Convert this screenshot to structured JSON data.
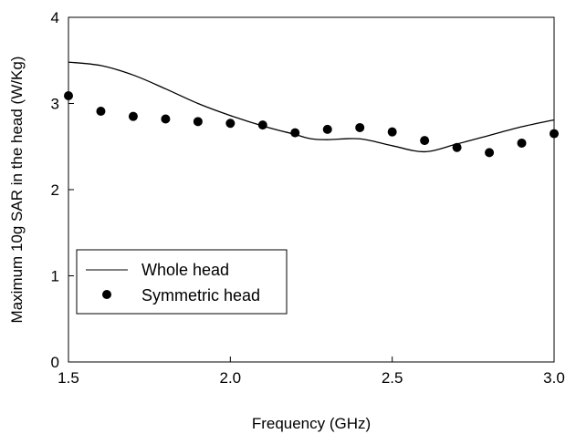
{
  "chart_data": {
    "type": "line",
    "xlabel": "Frequency (GHz)",
    "ylabel": "Maximum 10g SAR in the head (W/Kg)",
    "xlim": [
      1.5,
      3.0
    ],
    "ylim": [
      0,
      4
    ],
    "x_ticks": [
      "1.5",
      "2.0",
      "2.5",
      "3.0"
    ],
    "y_ticks": [
      "0",
      "1",
      "2",
      "3",
      "4"
    ],
    "grid": false,
    "legend_position": "bottom-left",
    "series": [
      {
        "name": "Whole head",
        "style": "line",
        "color": "#000000",
        "x": [
          1.5,
          1.6,
          1.7,
          1.8,
          1.9,
          2.0,
          2.1,
          2.2,
          2.25,
          2.3,
          2.4,
          2.5,
          2.6,
          2.7,
          2.8,
          2.9,
          3.0
        ],
        "y": [
          3.48,
          3.44,
          3.33,
          3.17,
          3.0,
          2.86,
          2.74,
          2.64,
          2.59,
          2.58,
          2.59,
          2.51,
          2.44,
          2.53,
          2.63,
          2.73,
          2.81
        ]
      },
      {
        "name": "Symmetric head",
        "style": "marker",
        "color": "#000000",
        "x": [
          1.5,
          1.6,
          1.7,
          1.8,
          1.9,
          2.0,
          2.1,
          2.2,
          2.3,
          2.4,
          2.5,
          2.6,
          2.7,
          2.8,
          2.9,
          3.0
        ],
        "y": [
          3.09,
          2.91,
          2.85,
          2.82,
          2.79,
          2.77,
          2.75,
          2.66,
          2.7,
          2.72,
          2.67,
          2.57,
          2.49,
          2.43,
          2.54,
          2.65
        ]
      }
    ]
  }
}
